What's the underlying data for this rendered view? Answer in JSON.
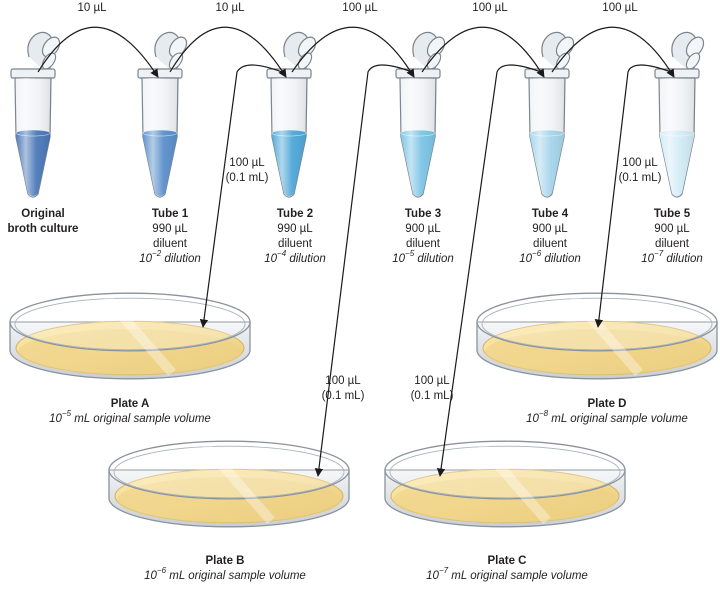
{
  "transfers": [
    "10 µL",
    "10 µL",
    "100 µL",
    "100 µL",
    "100 µL"
  ],
  "tubes": [
    {
      "name": "Original",
      "name2": "broth culture",
      "volume": "",
      "diluent": "",
      "dil_base": "",
      "dil_exp": "",
      "dil_suffix": "",
      "color": "#4a78b8"
    },
    {
      "name": "Tube 1",
      "name2": "",
      "volume": "990 µL",
      "diluent": "diluent",
      "dil_base": "10",
      "dil_exp": "−2",
      "dil_suffix": " dilution",
      "color": "#5b8fcc"
    },
    {
      "name": "Tube 2",
      "name2": "",
      "volume": "990 µL",
      "diluent": "diluent",
      "dil_base": "10",
      "dil_exp": "−4",
      "dil_suffix": " dilution",
      "color": "#4fa7d8"
    },
    {
      "name": "Tube 3",
      "name2": "",
      "volume": "900 µL",
      "diluent": "diluent",
      "dil_base": "10",
      "dil_exp": "−5",
      "dil_suffix": " dilution",
      "color": "#7cc4e6"
    },
    {
      "name": "Tube 4",
      "name2": "",
      "volume": "900 µL",
      "diluent": "diluent",
      "dil_base": "10",
      "dil_exp": "−6",
      "dil_suffix": " dilution",
      "color": "#a6d5ec"
    },
    {
      "name": "Tube 5",
      "name2": "",
      "volume": "900 µL",
      "diluent": "diluent",
      "dil_base": "10",
      "dil_exp": "−7",
      "dil_suffix": " dilution",
      "color": "#d2ebf6"
    }
  ],
  "plate_transfers": [
    {
      "line1": "100 µL",
      "line2": "(0.1 mL)"
    },
    {
      "line1": "100 µL",
      "line2": "(0.1 mL)"
    },
    {
      "line1": "100 µL",
      "line2": "(0.1 mL)"
    },
    {
      "line1": "100 µL",
      "line2": "(0.1 mL)"
    }
  ],
  "plates": [
    {
      "name": "Plate A",
      "vol_base": "10",
      "vol_exp": "−5",
      "vol_suffix": " mL original sample volume"
    },
    {
      "name": "Plate B",
      "vol_base": "10",
      "vol_exp": "−6",
      "vol_suffix": " mL original sample volume"
    },
    {
      "name": "Plate C",
      "vol_base": "10",
      "vol_exp": "−7",
      "vol_suffix": " mL original sample volume"
    },
    {
      "name": "Plate D",
      "vol_base": "10",
      "vol_exp": "−8",
      "vol_suffix": " mL original sample volume"
    }
  ],
  "colors": {
    "arrow": "#1a1a1a",
    "agar": "#f3dfa0",
    "agar_edge": "#e4c77a",
    "dish": "#dde1e6",
    "tube_plastic": "#e9eef3"
  }
}
